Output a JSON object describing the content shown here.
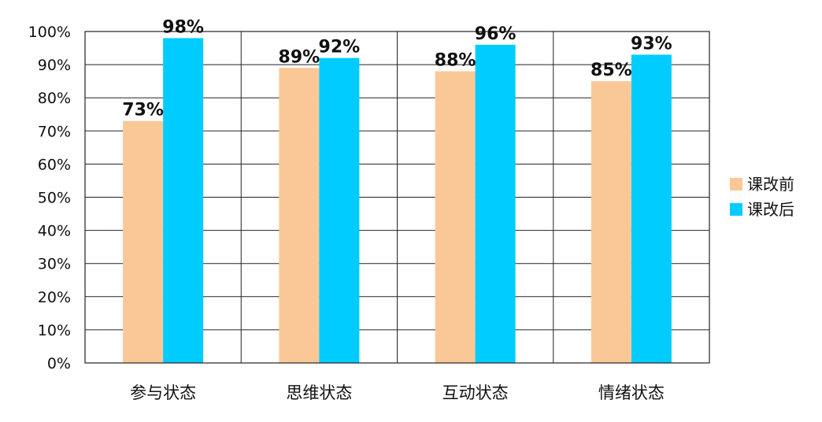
{
  "chart_data": {
    "type": "bar",
    "title": "",
    "xlabel": "",
    "ylabel": "",
    "categories": [
      "参与状态",
      "思维状态",
      "互动状态",
      "情绪状态"
    ],
    "series": [
      {
        "name": "课改前",
        "values": [
          73,
          89,
          88,
          85
        ],
        "labels": [
          "73%",
          "89%",
          "88%",
          "85%"
        ],
        "color": "#FAC896"
      },
      {
        "name": "课改后",
        "values": [
          98,
          92,
          96,
          93
        ],
        "labels": [
          "98%",
          "92%",
          "96%",
          "93%"
        ],
        "color": "#00CCFF"
      }
    ],
    "ylim": [
      0,
      100
    ],
    "y_ticks": [
      "0%",
      "10%",
      "20%",
      "30%",
      "40%",
      "50%",
      "60%",
      "70%",
      "80%",
      "90%",
      "100%"
    ],
    "grid": true,
    "legend_position": "right"
  }
}
